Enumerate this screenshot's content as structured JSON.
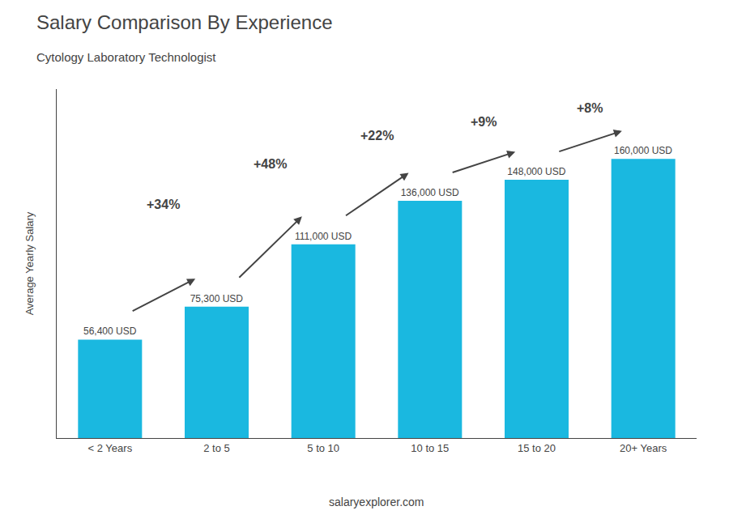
{
  "chart_data": {
    "type": "bar",
    "title": "Salary Comparison By Experience",
    "subtitle": "Cytology Laboratory Technologist",
    "ylabel": "Average Yearly Salary",
    "categories": [
      "< 2 Years",
      "2 to 5",
      "5 to 10",
      "10 to 15",
      "15 to 20",
      "20+ Years"
    ],
    "values": [
      56400,
      75300,
      111000,
      136000,
      148000,
      160000
    ],
    "value_labels": [
      "56,400 USD",
      "75,300 USD",
      "111,000 USD",
      "136,000 USD",
      "148,000 USD",
      "160,000 USD"
    ],
    "data_labels": true,
    "annotations": [
      "+34%",
      "+48%",
      "+22%",
      "+9%",
      "+8%"
    ],
    "watermark": "salaryexplorer.com",
    "color": "#1ab8e0",
    "ylim": [
      0,
      200000
    ],
    "tick_labels": "x",
    "grid": false
  }
}
